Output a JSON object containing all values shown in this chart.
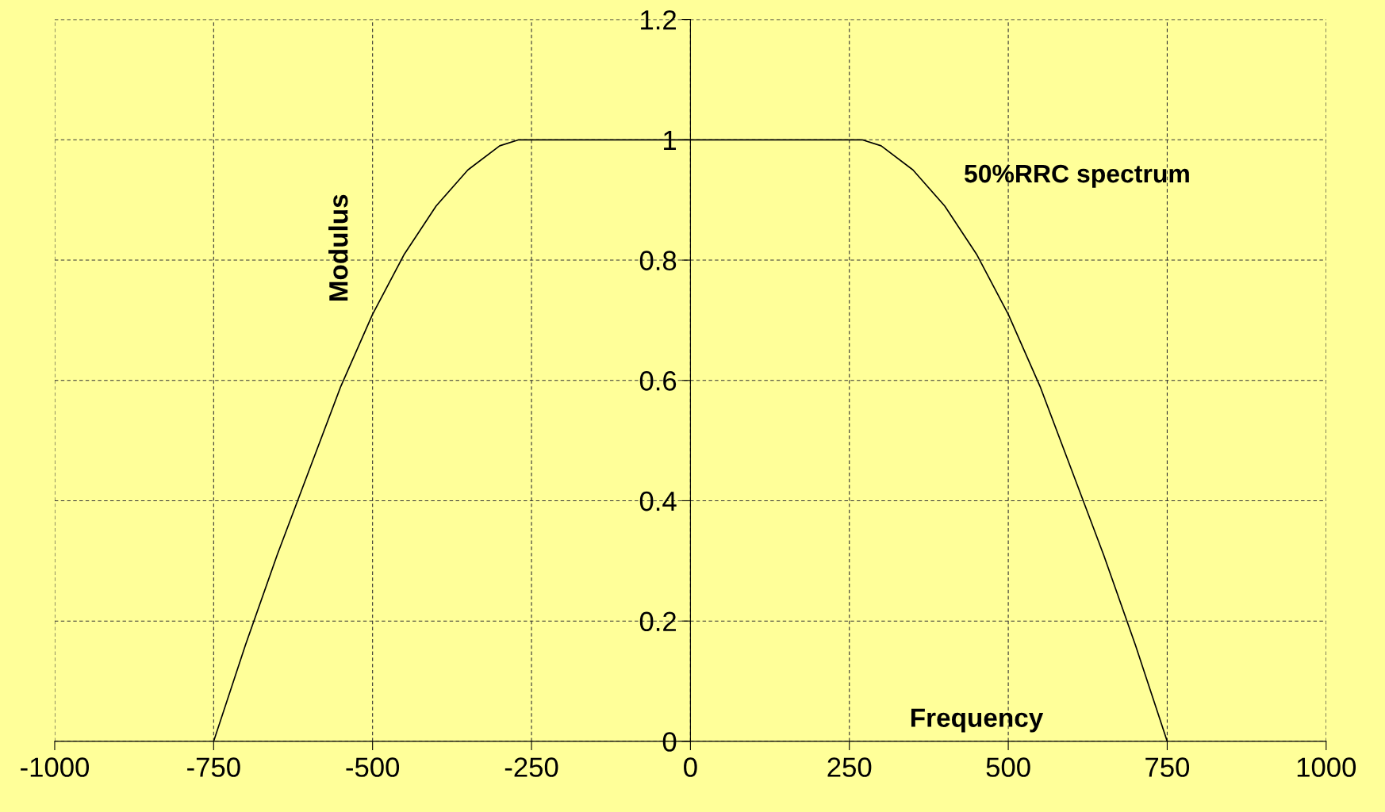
{
  "chart_data": {
    "type": "line",
    "xlabel": "Frequency",
    "ylabel": "Modulus",
    "series": [
      {
        "name": "50%RRC spectrum",
        "color": "#000000",
        "x": [
          -750,
          -700,
          -650,
          -600,
          -550,
          -500,
          -450,
          -400,
          -350,
          -300,
          -270,
          0,
          270,
          300,
          350,
          400,
          450,
          500,
          550,
          600,
          650,
          700,
          750
        ],
        "values": [
          0,
          0.16,
          0.31,
          0.45,
          0.59,
          0.71,
          0.81,
          0.89,
          0.95,
          0.99,
          1,
          1,
          1,
          0.99,
          0.95,
          0.89,
          0.81,
          0.71,
          0.59,
          0.45,
          0.31,
          0.16,
          0
        ]
      }
    ],
    "xlim": [
      -1000,
      1000
    ],
    "xticks": [
      -1000,
      -750,
      -500,
      -250,
      0,
      250,
      500,
      750,
      1000
    ],
    "ylim": [
      0,
      1.2
    ],
    "yticks": [
      0,
      0.2,
      0.4,
      0.6,
      0.8,
      1,
      1.2
    ],
    "grid": true,
    "line_style": "solid",
    "marker": "none",
    "legend": false
  }
}
